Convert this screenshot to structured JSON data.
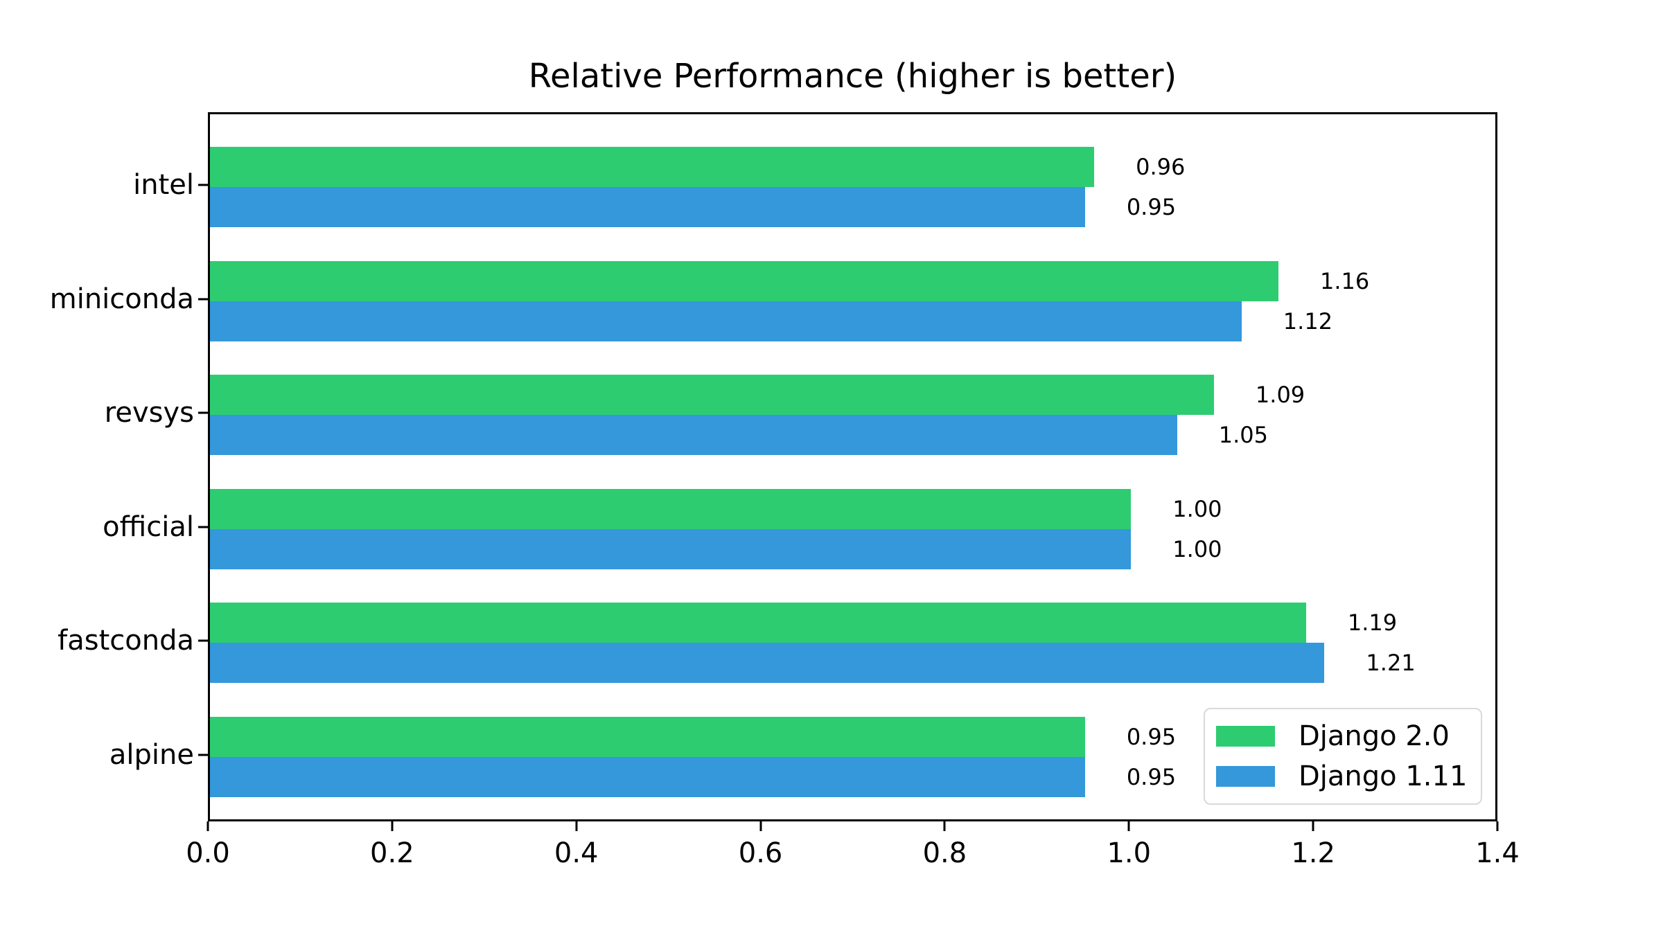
{
  "chart_data": {
    "type": "bar",
    "orientation": "horizontal",
    "title": "Relative Performance (higher is better)",
    "categories": [
      "intel",
      "miniconda",
      "revsys",
      "official",
      "fastconda",
      "alpine"
    ],
    "series": [
      {
        "name": "Django 2.0",
        "color": "#2ecc71",
        "values": [
          0.96,
          1.16,
          1.09,
          1.0,
          1.19,
          0.95
        ],
        "value_labels": [
          "0.96",
          "1.16",
          "1.09",
          "1.00",
          "1.19",
          "0.95"
        ]
      },
      {
        "name": "Django 1.11",
        "color": "#3498db",
        "values": [
          0.95,
          1.12,
          1.05,
          1.0,
          1.21,
          0.95
        ],
        "value_labels": [
          "0.95",
          "1.12",
          "1.05",
          "1.00",
          "1.21",
          "0.95"
        ]
      }
    ],
    "xlim": [
      0,
      1.4
    ],
    "xticks": [
      "0.0",
      "0.2",
      "0.4",
      "0.6",
      "0.8",
      "1.0",
      "1.2",
      "1.4"
    ],
    "grid": false,
    "legend_position": "lower right",
    "colors": {
      "axis": "#000000",
      "text": "#000000",
      "legend_border": "#d9d9d9",
      "background": "#ffffff"
    }
  }
}
